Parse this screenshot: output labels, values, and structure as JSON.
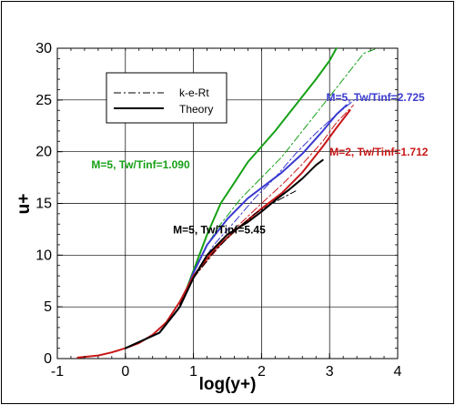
{
  "chart_data": {
    "type": "line",
    "title": "",
    "xlabel": "log(y+)",
    "ylabel": "u+",
    "xlim": [
      -1,
      4
    ],
    "ylim": [
      0,
      30
    ],
    "x_ticks": [
      -1,
      0,
      1,
      2,
      3,
      4
    ],
    "y_ticks": [
      0,
      5,
      10,
      15,
      20,
      25,
      30
    ],
    "grid": true,
    "legend": {
      "placement": "top-left",
      "entries": [
        {
          "label": "k-e-Rt",
          "style": "dash-dot",
          "color": "#000000"
        },
        {
          "label": "Theory",
          "style": "solid",
          "color": "#000000"
        }
      ]
    },
    "series": [
      {
        "case": "M=5, Tw/Tinf=1.090",
        "style": "solid",
        "color": "#16a016",
        "x": [
          0.0,
          0.5,
          0.8,
          1.0,
          1.2,
          1.4,
          1.6,
          1.8,
          2.0,
          2.2,
          2.5,
          2.8,
          3.0,
          3.1
        ],
        "y": [
          1.0,
          2.5,
          5.0,
          8.5,
          12.0,
          15.0,
          17.0,
          19.0,
          20.5,
          22.0,
          24.5,
          27.0,
          28.8,
          30.0
        ]
      },
      {
        "case": "M=5, Tw/Tinf=1.090",
        "style": "dash-dot",
        "color": "#16a016",
        "x": [
          0.8,
          1.0,
          1.2,
          1.4,
          1.7,
          2.0,
          2.3,
          2.6,
          2.9,
          3.2,
          3.5,
          3.7
        ],
        "y": [
          5.0,
          8.5,
          11.0,
          13.0,
          15.5,
          17.5,
          19.5,
          22.0,
          24.5,
          27.0,
          29.5,
          30.0
        ]
      },
      {
        "case": "M=5, Tw/Tinf=2.725",
        "style": "solid",
        "color": "#3a3ad0",
        "x": [
          0.0,
          0.5,
          0.8,
          1.0,
          1.2,
          1.5,
          1.8,
          2.0,
          2.3,
          2.6,
          2.9,
          3.1,
          3.25
        ],
        "y": [
          1.0,
          2.5,
          5.0,
          8.3,
          11.0,
          13.5,
          15.5,
          16.5,
          18.0,
          19.8,
          22.0,
          23.6,
          24.5
        ]
      },
      {
        "case": "M=5, Tw/Tinf=2.725",
        "style": "dash-dot",
        "color": "#3a3ad0",
        "x": [
          0.8,
          1.0,
          1.3,
          1.6,
          1.9,
          2.2,
          2.5,
          2.8,
          3.1,
          3.4
        ],
        "y": [
          5.0,
          8.0,
          11.0,
          13.2,
          15.5,
          17.5,
          19.8,
          21.8,
          23.6,
          25.2
        ]
      },
      {
        "case": "M=2, Tw/Tinf=1.712",
        "style": "solid",
        "color": "#c81818",
        "x": [
          -0.7,
          -0.4,
          -0.2,
          0.0,
          0.2,
          0.4,
          0.6,
          0.8,
          1.0,
          1.3,
          1.6,
          2.0,
          2.3,
          2.6,
          2.9,
          3.1,
          3.3
        ],
        "y": [
          0.1,
          0.3,
          0.6,
          1.0,
          1.5,
          2.3,
          3.5,
          5.5,
          8.0,
          10.5,
          12.3,
          14.5,
          16.0,
          18.0,
          20.5,
          22.3,
          24.0
        ]
      },
      {
        "case": "M=2, Tw/Tinf=1.712",
        "style": "dash-dot",
        "color": "#c81818",
        "x": [
          0.8,
          1.0,
          1.3,
          1.6,
          2.0,
          2.3,
          2.6,
          2.9,
          3.1,
          3.35
        ],
        "y": [
          5.3,
          7.8,
          10.2,
          12.5,
          15.0,
          16.8,
          18.8,
          21.0,
          22.8,
          24.5
        ]
      },
      {
        "case": "M=5, Tw/Tinf=5.45",
        "style": "solid",
        "color": "#000000",
        "x": [
          0.0,
          0.5,
          0.8,
          1.0,
          1.2,
          1.5,
          1.8,
          2.0,
          2.2,
          2.4,
          2.6,
          2.8,
          2.9
        ],
        "y": [
          1.0,
          2.5,
          5.0,
          7.8,
          10.0,
          12.0,
          13.2,
          14.2,
          15.3,
          16.3,
          17.4,
          18.7,
          19.2
        ]
      },
      {
        "case": "M=5, Tw/Tinf=5.45",
        "style": "dash-dot",
        "color": "#000000",
        "x": [
          0.8,
          1.0,
          1.3,
          1.6,
          1.9,
          2.1,
          2.3,
          2.5
        ],
        "y": [
          5.2,
          7.8,
          10.3,
          12.3,
          14.0,
          14.8,
          15.5,
          16.2
        ]
      }
    ],
    "annotations": [
      {
        "text": "M=5, Tw/Tinf=2.725",
        "color": "#3a3ad0",
        "x": 2.95,
        "y": 24.9
      },
      {
        "text": "M=2, Tw/Tinf=1.712",
        "color": "#c81818",
        "x": 3.0,
        "y": 19.6
      },
      {
        "text": "M=5, Tw/Tinf=1.090",
        "color": "#16a016",
        "x": -0.5,
        "y": 18.4
      },
      {
        "text": "M=5, Tw/Tinf=5.45",
        "color": "#000000",
        "x": 0.7,
        "y": 12.1
      }
    ]
  }
}
